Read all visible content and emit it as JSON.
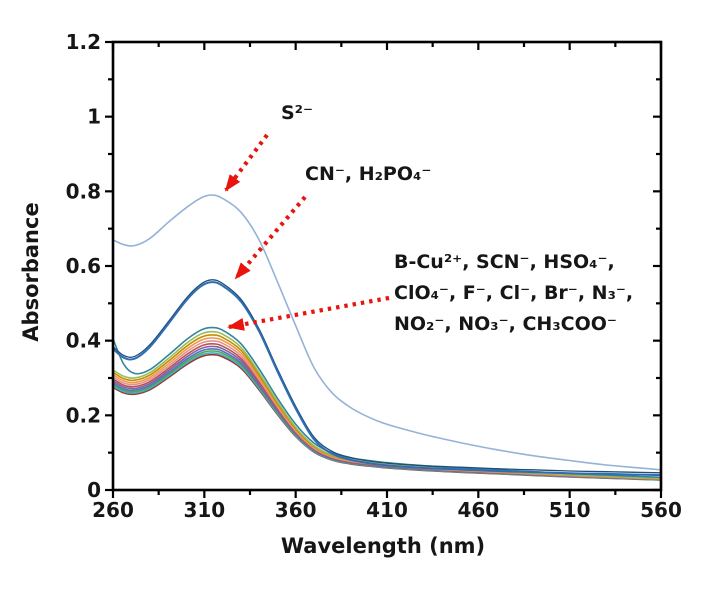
{
  "figure": {
    "background": "#ffffff",
    "axis_color": "#000000",
    "text_color": "#161616",
    "arrow_color": "#e9150d"
  },
  "axes": {
    "x": {
      "label": "Wavelength (nm)",
      "min": 260,
      "max": 560,
      "major_ticks": [
        260,
        310,
        360,
        410,
        460,
        510,
        560
      ],
      "tick_labels": [
        "260",
        "310",
        "360",
        "410",
        "460",
        "510",
        "560"
      ],
      "minor_step": 25
    },
    "y": {
      "label": "Absorbance",
      "min": 0,
      "max": 1.2,
      "major_ticks": [
        0,
        0.2,
        0.4,
        0.6,
        0.8,
        1,
        1.2
      ],
      "tick_labels": [
        "0",
        "0.2",
        "0.4",
        "0.6",
        "0.8",
        "1",
        "1.2"
      ],
      "minor_step": 0.1
    }
  },
  "annotations": {
    "s2": {
      "text": "S²⁻"
    },
    "cn": {
      "text": "CN⁻, H₂PO₄⁻"
    },
    "bundle": {
      "lines": [
        "B-Cu²⁺, SCN⁻, HSO₄⁻,",
        "ClO₄⁻, F⁻, Cl⁻, Br⁻, N₃⁻,",
        "NO₂⁻, NO₃⁻, CH₃COO⁻"
      ]
    }
  },
  "arrows": [
    {
      "name": "arrow-to-s2-peak",
      "from": [
        267,
        135
      ],
      "to": [
        226,
        190
      ]
    },
    {
      "name": "arrow-to-cn-peak",
      "from": [
        305,
        197
      ],
      "to": [
        236,
        278
      ]
    },
    {
      "name": "arrow-to-bundle-peak",
      "from": [
        389,
        298
      ],
      "to": [
        229,
        327
      ]
    }
  ],
  "chart_data": {
    "type": "line",
    "title": "",
    "xlabel": "Wavelength (nm)",
    "ylabel": "Absorbance",
    "xlim": [
      260,
      560
    ],
    "ylim": [
      0,
      1.2
    ],
    "grid": false,
    "legend_position": "none",
    "x": [
      260,
      266,
      272,
      280,
      290,
      300,
      308,
      314,
      320,
      330,
      340,
      350,
      360,
      370,
      380,
      390,
      400,
      410,
      430,
      450,
      470,
      490,
      510,
      530,
      560
    ],
    "series": [
      {
        "name": "S²⁻",
        "color": "#95b3d7",
        "width": 1.6,
        "values": [
          0.67,
          0.657,
          0.655,
          0.673,
          0.716,
          0.756,
          0.782,
          0.79,
          0.781,
          0.744,
          0.67,
          0.558,
          0.44,
          0.328,
          0.26,
          0.221,
          0.195,
          0.176,
          0.149,
          0.127,
          0.108,
          0.092,
          0.079,
          0.067,
          0.054
        ]
      },
      {
        "name": "CN⁻",
        "color": "#2e6db4",
        "width": 2.0,
        "values": [
          0.378,
          0.354,
          0.352,
          0.382,
          0.443,
          0.507,
          0.545,
          0.557,
          0.547,
          0.505,
          0.425,
          0.318,
          0.218,
          0.136,
          0.097,
          0.081,
          0.072,
          0.066,
          0.059,
          0.055,
          0.051,
          0.048,
          0.045,
          0.043,
          0.04
        ]
      },
      {
        "name": "H₂PO₄⁻",
        "color": "#1f4e79",
        "width": 1.3,
        "values": [
          0.384,
          0.36,
          0.358,
          0.388,
          0.449,
          0.513,
          0.551,
          0.563,
          0.553,
          0.511,
          0.431,
          0.324,
          0.224,
          0.142,
          0.103,
          0.087,
          0.078,
          0.072,
          0.065,
          0.061,
          0.057,
          0.054,
          0.051,
          0.049,
          0.046
        ]
      }
    ],
    "bundle": {
      "comment": "11 nearly-overlapping spectra; values = base_values * scale unless explicit values given",
      "base_values": [
        0.33,
        0.312,
        0.308,
        0.322,
        0.36,
        0.402,
        0.428,
        0.435,
        0.428,
        0.392,
        0.322,
        0.243,
        0.172,
        0.122,
        0.096,
        0.084,
        0.077,
        0.071,
        0.063,
        0.057,
        0.052,
        0.047,
        0.042,
        0.038,
        0.032
      ],
      "series": [
        {
          "name": "B-Cu²⁺",
          "color": "#31859c",
          "width": 1.6,
          "values": [
            0.405,
            0.336,
            0.312,
            0.322,
            0.36,
            0.402,
            0.428,
            0.435,
            0.428,
            0.392,
            0.324,
            0.246,
            0.176,
            0.126,
            0.099,
            0.086,
            0.079,
            0.073,
            0.065,
            0.059,
            0.054,
            0.049,
            0.044,
            0.04,
            0.034
          ]
        },
        {
          "name": "SCN⁻",
          "color": "#9bbb59",
          "width": 1.6,
          "scale": 0.975
        },
        {
          "name": "HSO₄⁻",
          "color": "#bf9000",
          "width": 1.6,
          "scale": 0.955
        },
        {
          "name": "ClO₄⁻",
          "color": "#f79646",
          "width": 1.6,
          "scale": 0.936
        },
        {
          "name": "F⁻",
          "color": "#d99694",
          "width": 1.6,
          "scale": 0.918
        },
        {
          "name": "Cl⁻",
          "color": "#c0504d",
          "width": 1.6,
          "scale": 0.9
        },
        {
          "name": "Br⁻",
          "color": "#8064a2",
          "width": 1.6,
          "scale": 0.884
        },
        {
          "name": "N₃⁻",
          "color": "#5b6fc7",
          "width": 1.6,
          "scale": 0.869
        },
        {
          "name": "NO₂⁻",
          "color": "#4aa84e",
          "width": 1.6,
          "scale": 0.856
        },
        {
          "name": "NO₃⁻",
          "color": "#45b0c1",
          "width": 1.6,
          "scale": 0.844
        },
        {
          "name": "CH₃COO⁻",
          "color": "#953735",
          "width": 1.6,
          "scale": 0.833
        }
      ]
    }
  }
}
